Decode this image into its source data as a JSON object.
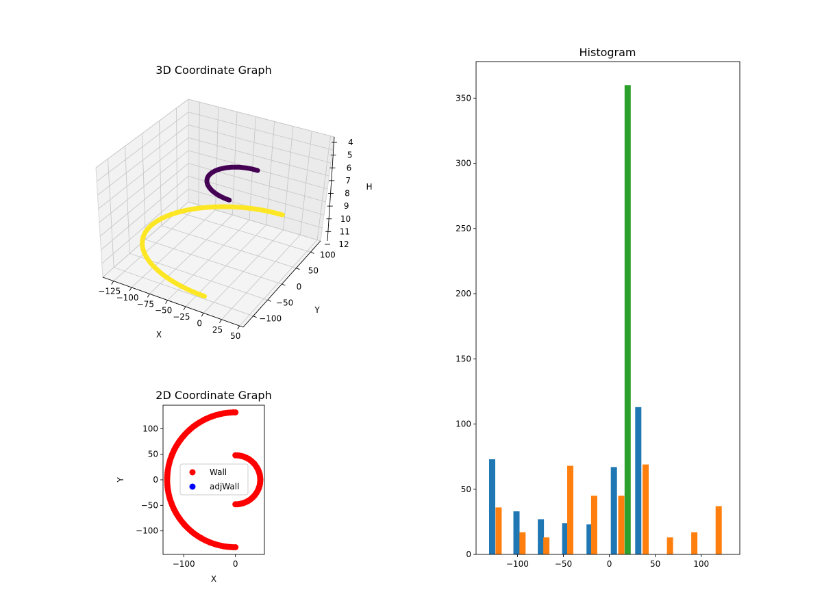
{
  "chart_data": [
    {
      "type": "scatter",
      "projection": "3d",
      "title": "3D Coordinate Graph",
      "xlabel": "X",
      "ylabel": "Y",
      "zlabel": "H",
      "xlim": [
        -140,
        55
      ],
      "ylim": [
        -135,
        135
      ],
      "zlim": [
        4,
        12
      ],
      "z_inverted": true,
      "grid": true,
      "x_ticks": [
        "−125",
        "−100",
        "−75",
        "−50",
        "−25",
        "0",
        "25",
        "50"
      ],
      "y_ticks": [
        "−100",
        "−50",
        "0",
        "50",
        "100"
      ],
      "z_ticks": [
        "4",
        "5",
        "6",
        "7",
        "8",
        "9",
        "10",
        "11",
        "12"
      ],
      "series": [
        {
          "color": "#440154",
          "shape": "half-circle",
          "center": [
            0,
            0
          ],
          "radius": 48,
          "h": 5.5
        },
        {
          "color": "#fde725",
          "shape": "half-circle",
          "center": [
            0,
            0
          ],
          "radius": 132,
          "h": 10.8
        }
      ]
    },
    {
      "type": "scatter",
      "title": "2D Coordinate Graph",
      "xlabel": "X",
      "ylabel": "Y",
      "xlim": [
        -140,
        56
      ],
      "ylim": [
        -146,
        146
      ],
      "x_ticks": [
        "−100",
        "0"
      ],
      "y_ticks": [
        "−100",
        "−50",
        "0",
        "50",
        "100"
      ],
      "legend": "center",
      "series": [
        {
          "name": "Wall",
          "color": "#ff0000",
          "shape": "half-circle",
          "radius": 132
        },
        {
          "name": "Wall",
          "color": "#ff0000",
          "shape": "half-circle",
          "radius": 48
        },
        {
          "name": "adjWall",
          "color": "#0000ff",
          "points": []
        }
      ],
      "legend_entries": [
        {
          "label": "Wall",
          "color": "#ff0000"
        },
        {
          "label": "adjWall",
          "color": "#0000ff"
        }
      ]
    },
    {
      "type": "bar",
      "title": "Histogram",
      "xlim": [
        -145,
        142
      ],
      "ylim": [
        0,
        378
      ],
      "x_ticks": [
        "−100",
        "−50",
        "0",
        "50",
        "100"
      ],
      "y_ticks": [
        "0",
        "50",
        "100",
        "150",
        "200",
        "250",
        "300",
        "350"
      ],
      "bar_width": 6.7,
      "series": [
        {
          "color": "#1f77b4",
          "x": [
            -127.5,
            -101.0,
            -74.5,
            -48.0,
            -21.5,
            5.0,
            31.5
          ],
          "values": [
            73,
            33,
            27,
            24,
            23,
            67,
            113
          ]
        },
        {
          "color": "#ff7f0e",
          "x": [
            -120.5,
            -94.5,
            -68.5,
            -42.5,
            -16.5,
            13.0,
            39.5,
            66.0,
            92.5,
            119.0
          ],
          "values": [
            36,
            17,
            13,
            68,
            45,
            45,
            69,
            13,
            17,
            37
          ]
        },
        {
          "color": "#2ca02c",
          "x": [
            20.0
          ],
          "values": [
            360
          ]
        }
      ]
    }
  ]
}
